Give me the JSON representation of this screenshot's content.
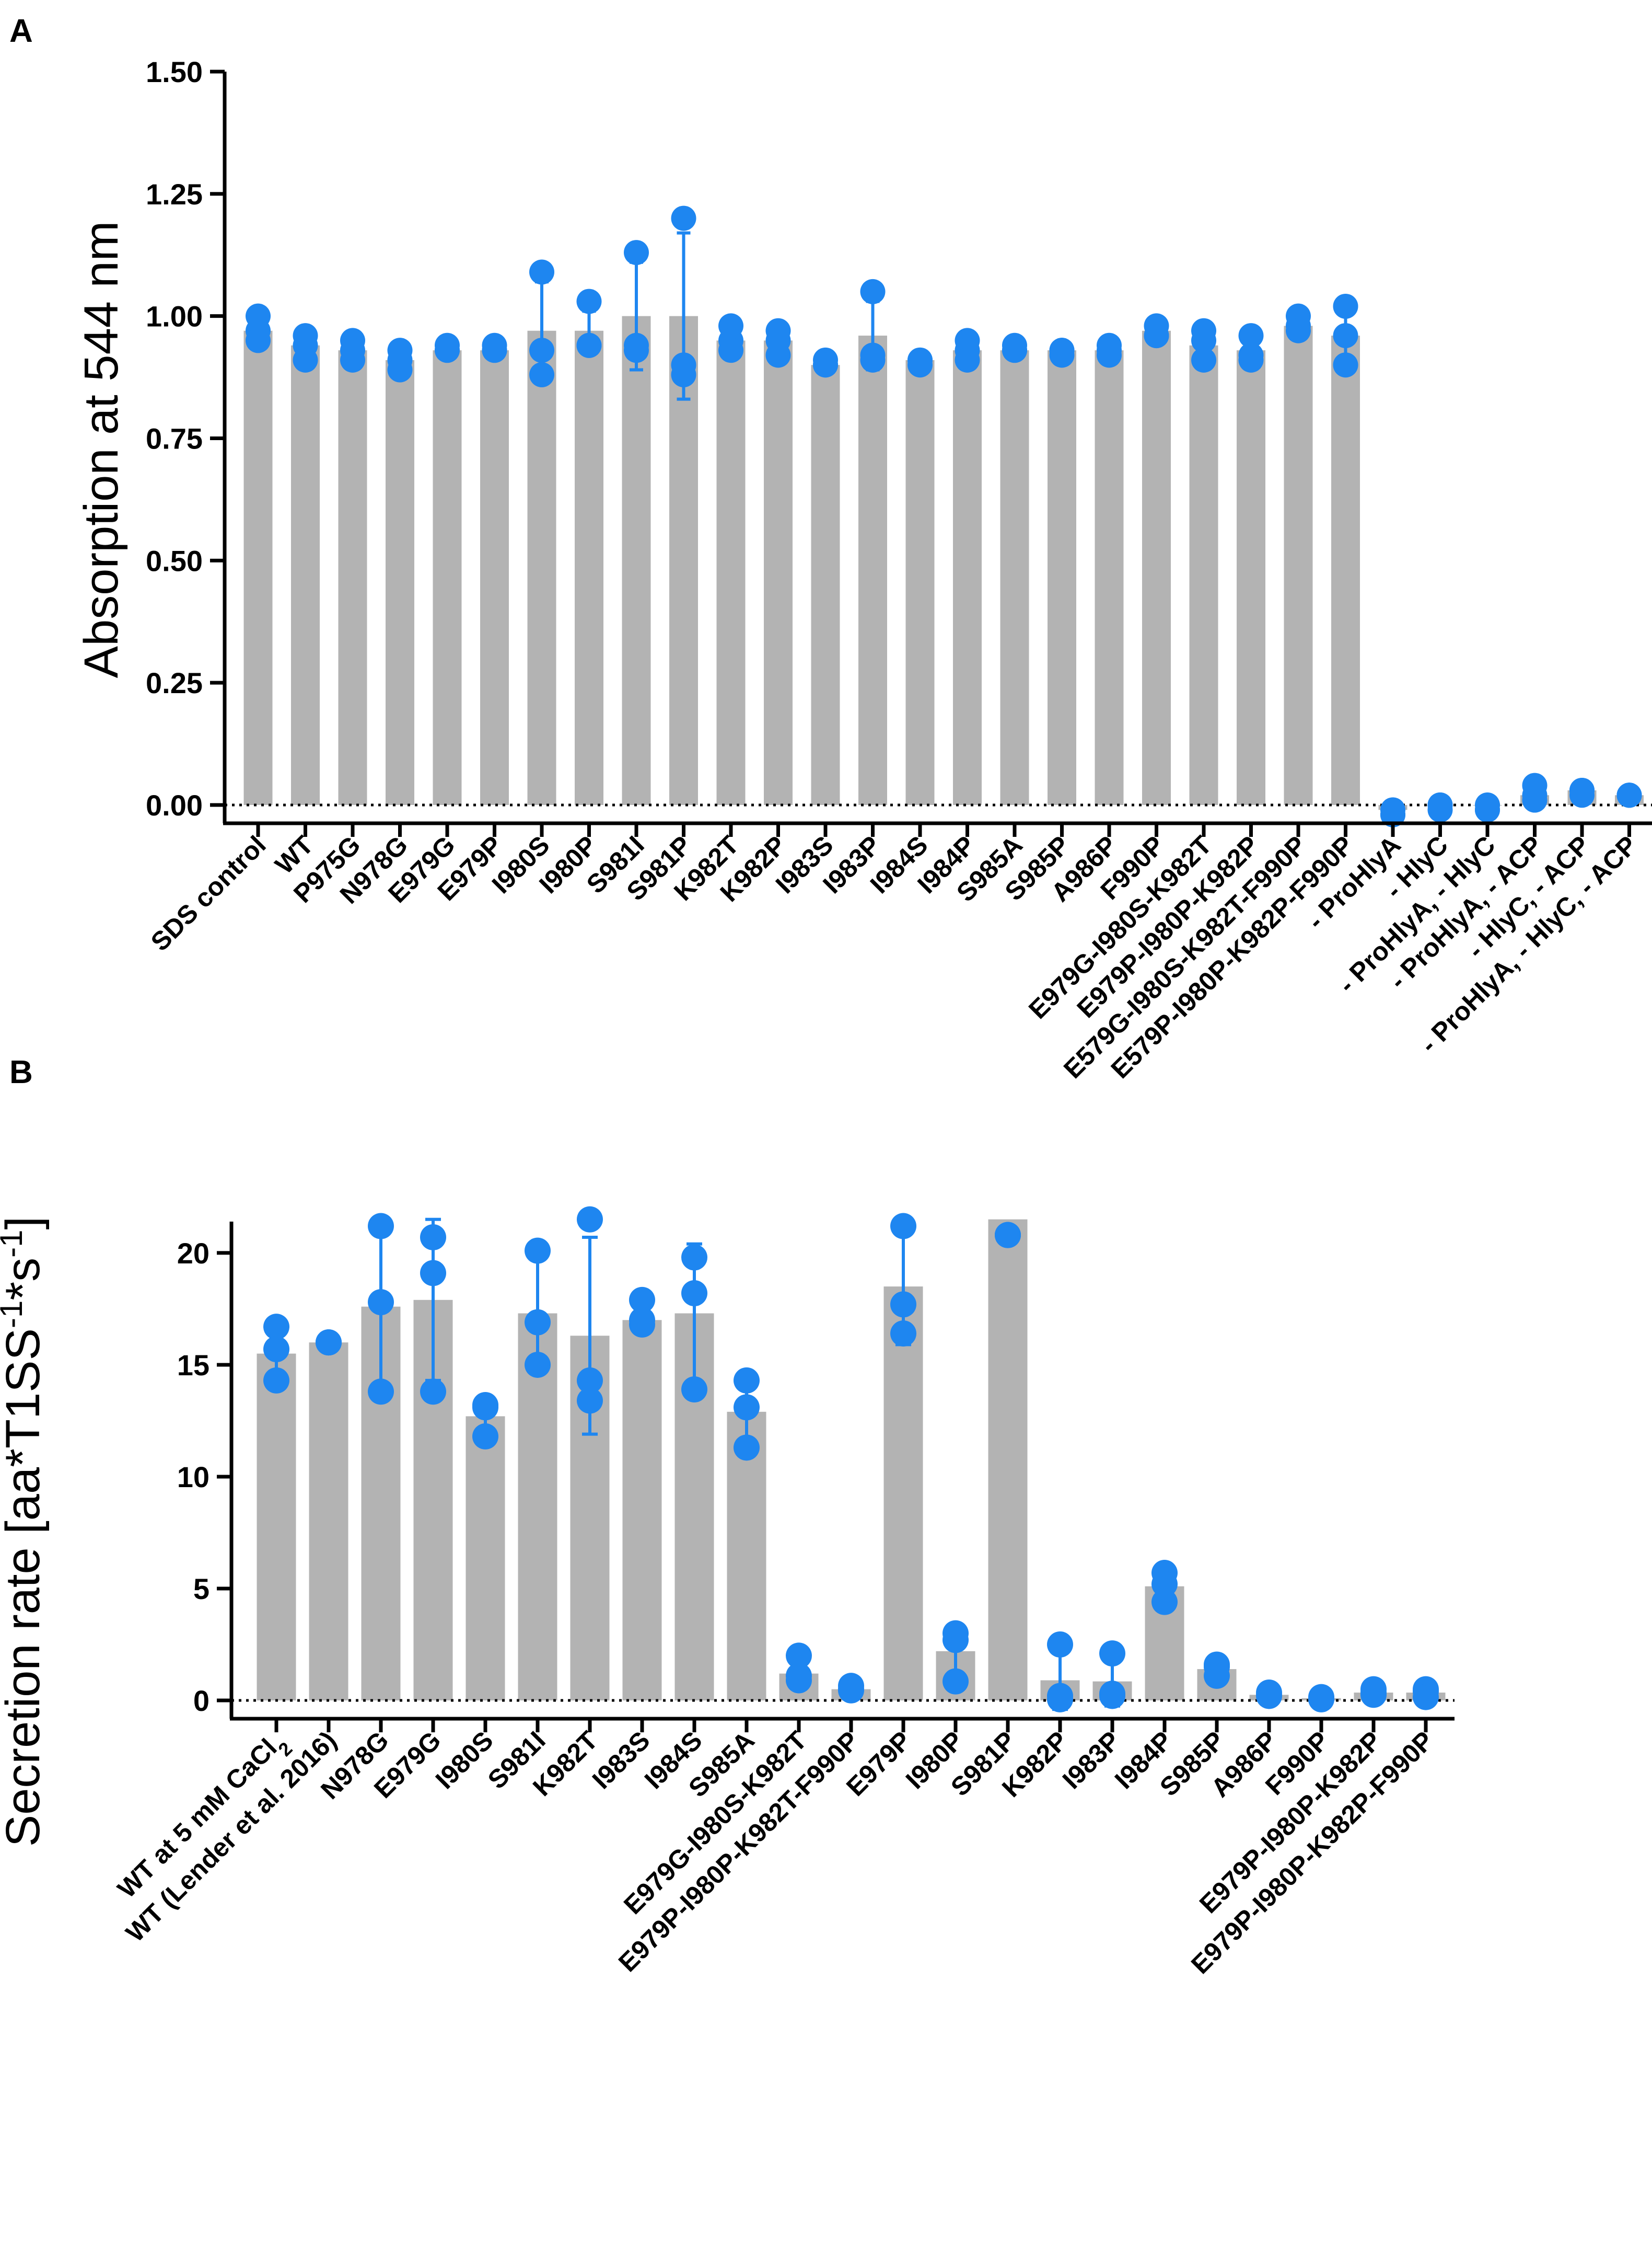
{
  "colors": {
    "bar": "#b3b3b3",
    "point": "#1e86f0",
    "axis": "#000000"
  },
  "chart_data": [
    {
      "panel": "A",
      "type": "bar",
      "ylabel": "Absorption at 544 nm",
      "ylim": [
        0,
        1.5
      ],
      "yticks": [
        "0.00",
        "0.25",
        "0.50",
        "0.75",
        "1.00",
        "1.25",
        "1.50"
      ],
      "reference_line": 0,
      "categories": [
        "SDS control",
        "WT",
        "P975G",
        "N978G",
        "E979G",
        "E979P",
        "I980S",
        "I980P",
        "S981I",
        "S981P",
        "K982T",
        "K982P",
        "I983S",
        "I983P",
        "I984S",
        "I984P",
        "S985A",
        "S985P",
        "A986P",
        "F990P",
        "E979G-I980S-K982T",
        "E979P-I980P-K982P",
        "E579G-I980S-K982T-F990P",
        "E579P-I980P-K982P-F990P",
        "- ProHlyA",
        "- HlyC",
        "- ProHlyA, - HlyC",
        "- ProHlyA, - ACP",
        "- HlyC, - ACP",
        "- ProHlyA, - HlyC, - ACP"
      ],
      "values": [
        0.97,
        0.94,
        0.93,
        0.91,
        0.93,
        0.93,
        0.97,
        0.97,
        1.0,
        1.0,
        0.95,
        0.95,
        0.9,
        0.96,
        0.91,
        0.93,
        0.93,
        0.93,
        0.93,
        0.97,
        0.94,
        0.93,
        0.98,
        0.96,
        -0.01,
        0.0,
        0.0,
        0.02,
        0.03,
        0.02
      ],
      "points": [
        [
          1.0,
          0.97,
          0.95
        ],
        [
          0.96,
          0.94,
          0.91
        ],
        [
          0.95,
          0.93,
          0.91
        ],
        [
          0.93,
          0.91,
          0.89
        ],
        [
          0.94,
          0.93,
          0.93
        ],
        [
          0.94,
          0.93,
          0.93
        ],
        [
          1.09,
          0.93,
          0.88
        ],
        [
          1.03,
          0.94,
          0.94
        ],
        [
          1.13,
          0.94,
          0.93
        ],
        [
          1.2,
          0.9,
          0.88
        ],
        [
          0.98,
          0.95,
          0.93
        ],
        [
          0.97,
          0.95,
          0.92
        ],
        [
          0.91,
          0.9,
          0.9
        ],
        [
          1.05,
          0.92,
          0.91
        ],
        [
          0.91,
          0.91,
          0.9
        ],
        [
          0.95,
          0.93,
          0.91
        ],
        [
          0.94,
          0.93,
          0.93
        ],
        [
          0.93,
          0.93,
          0.92
        ],
        [
          0.94,
          0.93,
          0.92
        ],
        [
          0.98,
          0.96,
          0.96
        ],
        [
          0.97,
          0.95,
          0.91
        ],
        [
          0.96,
          0.92,
          0.91
        ],
        [
          1.0,
          0.98,
          0.97
        ],
        [
          1.02,
          0.96,
          0.9
        ],
        [
          -0.02,
          -0.01,
          -0.02
        ],
        [
          0.0,
          -0.01,
          0.0
        ],
        [
          0.0,
          -0.01,
          -0.01
        ],
        [
          0.04,
          0.02,
          0.01
        ],
        [
          0.03,
          0.03,
          0.02
        ],
        [
          0.02,
          0.02,
          0.02
        ]
      ],
      "errors": [
        0.02,
        0.02,
        0.02,
        0.02,
        0.01,
        0.01,
        0.1,
        0.04,
        0.11,
        0.17,
        0.02,
        0.02,
        0.01,
        0.07,
        0.01,
        0.02,
        0.01,
        0.01,
        0.01,
        0.01,
        0.03,
        0.03,
        0.02,
        0.06,
        0.01,
        0.01,
        0.01,
        0.01,
        0.01,
        0.01
      ]
    },
    {
      "panel": "B",
      "type": "bar",
      "ylabel": "Secretion rate [aa*T1SS",
      "ylabel_sup1": "-1",
      "ylabel_mid": "*s",
      "ylabel_sup2": "-1",
      "ylabel_end": "]",
      "ylim": [
        0,
        21.4
      ],
      "yticks": [
        "0",
        "5",
        "10",
        "15",
        "20"
      ],
      "reference_line": 0,
      "categories": [
        "WT at 5 mM CaCl",
        "WT (Lender et al. 2016)",
        "N978G",
        "E979G",
        "I980S",
        "S981I",
        "K982T",
        "I983S",
        "I984S",
        "S985A",
        "E979G-I980S-K982T",
        "E979P-I980P-K982T-F990P",
        "E979P",
        "I980P",
        "S981P",
        "K982P",
        "I983P",
        "I984P",
        "S985P",
        "A986P",
        "F990P",
        "E979P-I980P-K982P",
        "E979P-I980P-K982P-F990P"
      ],
      "subscript_first": "2",
      "values": [
        15.5,
        16.0,
        17.6,
        17.9,
        12.7,
        17.3,
        16.3,
        17.0,
        17.3,
        12.9,
        1.2,
        0.5,
        18.5,
        2.2,
        21.5,
        0.9,
        0.85,
        5.1,
        1.4,
        0.25,
        0.1,
        0.35,
        0.35
      ],
      "points": [
        [
          16.7,
          15.7,
          14.3
        ],
        [
          16.0,
          16.0,
          16.0
        ],
        [
          21.2,
          17.8,
          13.8
        ],
        [
          20.7,
          19.1,
          13.8
        ],
        [
          13.2,
          13.1,
          11.8
        ],
        [
          20.1,
          16.9,
          15.0
        ],
        [
          21.5,
          14.3,
          13.4
        ],
        [
          17.9,
          17.0,
          16.8
        ],
        [
          19.8,
          18.2,
          13.9
        ],
        [
          14.3,
          13.1,
          11.3
        ],
        [
          2.0,
          1.1,
          0.9
        ],
        [
          0.65,
          0.5,
          0.45
        ],
        [
          21.2,
          17.7,
          16.4
        ],
        [
          3.0,
          2.7,
          0.85
        ],
        [
          20.8,
          20.8,
          20.8
        ],
        [
          2.5,
          0.2,
          0.05
        ],
        [
          2.1,
          0.3,
          0.2
        ],
        [
          5.7,
          5.2,
          4.4
        ],
        [
          1.6,
          1.5,
          1.1
        ],
        [
          0.35,
          0.25,
          0.2
        ],
        [
          0.15,
          0.1,
          0.05
        ],
        [
          0.5,
          0.35,
          0.25
        ],
        [
          0.5,
          0.4,
          0.15
        ]
      ],
      "errors": [
        1.2,
        0.1,
        3.6,
        3.6,
        0.8,
        2.6,
        4.4,
        0.6,
        3.1,
        1.5,
        0.5,
        0.1,
        2.6,
        1.1,
        0.0,
        1.3,
        1.1,
        0.6,
        0.3,
        0.1,
        0.05,
        0.1,
        0.2
      ]
    }
  ],
  "panels": [
    {
      "letter": "A",
      "ylabel": "Absorption at 544 nm"
    },
    {
      "letter": "B"
    }
  ]
}
